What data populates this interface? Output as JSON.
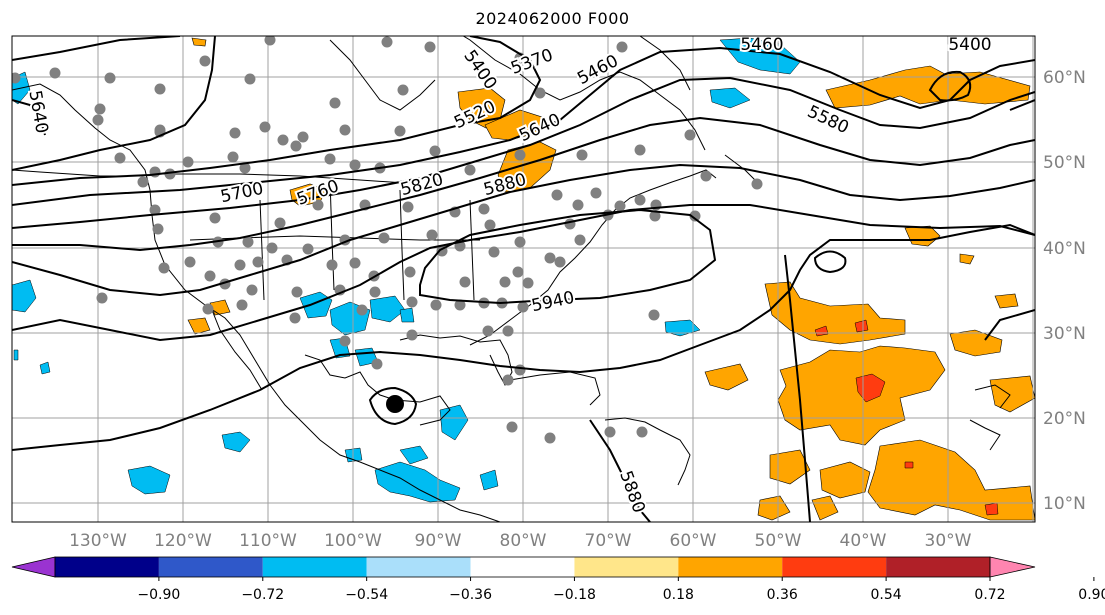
{
  "title": "2024062000 F000",
  "lon_labels": [
    "130°W",
    "120°W",
    "110°W",
    "100°W",
    "90°W",
    "80°W",
    "70°W",
    "60°W",
    "50°W",
    "40°W",
    "30°W"
  ],
  "lat_labels": [
    "60°N",
    "50°N",
    "40°N",
    "30°N",
    "20°N",
    "10°N"
  ],
  "contour_labels": [
    "5400",
    "5460",
    "5370",
    "5400",
    "5460",
    "5520",
    "5580",
    "5640",
    "5640",
    "5700",
    "5760",
    "5820",
    "5880",
    "5940",
    "5880"
  ],
  "colorbar": {
    "ticks": [
      "−0.90",
      "−0.72",
      "−0.54",
      "−0.36",
      "−0.18",
      "0.18",
      "0.36",
      "0.54",
      "0.72",
      "0.90"
    ],
    "colors": [
      "#9a33d1",
      "#00008a",
      "#2f58c9",
      "#00bcf2",
      "#aadffa",
      "#ffffff",
      "#ffe68a",
      "#ffa500",
      "#ff3c10",
      "#b02028",
      "#ff85b0"
    ]
  },
  "colors": {
    "frame": "#000000",
    "grid": "#a0a0a0",
    "axis_label": "#808080",
    "station": "#808080",
    "positive_anomaly": "#ffa500",
    "positive_anomaly_strong": "#ff3c10",
    "negative_anomaly": "#00bcf2"
  }
}
